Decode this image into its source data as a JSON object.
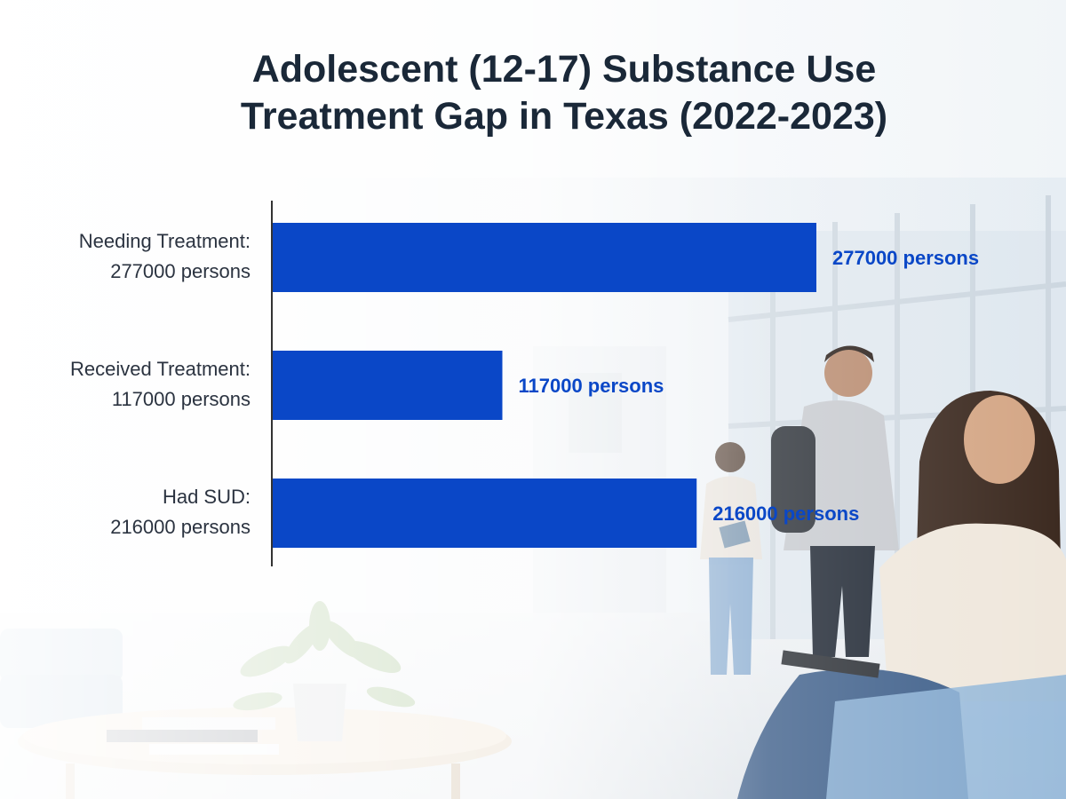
{
  "chart_data": {
    "type": "bar",
    "orientation": "horizontal",
    "title": "Adolescent (12-17) Substance Use Treatment Gap in Texas (2022-2023)",
    "title_lines": [
      "Adolescent (12-17) Substance Use",
      "Treatment Gap in Texas (2022-2023)"
    ],
    "categories": [
      {
        "line1": "Needing Treatment:",
        "line2": "277000 persons"
      },
      {
        "line1": "Received Treatment:",
        "line2": "117000 persons"
      },
      {
        "line1": "Had SUD:",
        "line2": "216000 persons"
      }
    ],
    "values": [
      277000,
      117000,
      216000
    ],
    "value_labels": [
      "277000 persons",
      "117000 persons",
      "216000 persons"
    ],
    "xlim": [
      0,
      277000
    ],
    "grid": false,
    "legend": "none",
    "colors": {
      "bar": "#0a47c7",
      "value_text": "#0a47c7",
      "axis": "#333333"
    }
  },
  "background": {
    "description_icons": [
      "lounge-sofa",
      "coffee-table",
      "potted-plant",
      "students-walking",
      "student-seated"
    ]
  }
}
